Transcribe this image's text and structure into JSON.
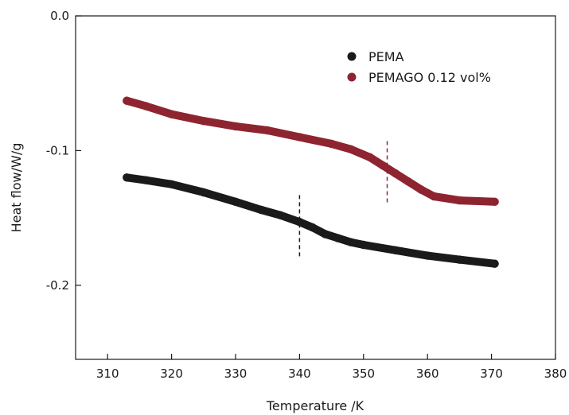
{
  "chart_data": {
    "type": "scatter",
    "title": "",
    "xlabel": "Temperature /K",
    "ylabel": "Heat flow/W/g",
    "xlim": [
      305,
      380
    ],
    "ylim": [
      -0.255,
      0
    ],
    "x_ticks": [
      310,
      320,
      330,
      340,
      350,
      360,
      370,
      380
    ],
    "x_tick_labels": [
      "310",
      "320",
      "330",
      "340",
      "350",
      "360",
      "370",
      "380"
    ],
    "y_ticks": [
      0.0,
      -0.1,
      -0.2
    ],
    "y_tick_labels": [
      "0.0",
      "-0.1",
      "-0.2"
    ],
    "grid": false,
    "legend_position": "top-right",
    "series": [
      {
        "name": "PEMA",
        "color": "#1a1a1a",
        "x": [
          313,
          316,
          320,
          325,
          330,
          334,
          337,
          340,
          342,
          344,
          346,
          348,
          350,
          355,
          360,
          365,
          370.5
        ],
        "y": [
          -0.12,
          -0.122,
          -0.125,
          -0.131,
          -0.138,
          -0.144,
          -0.148,
          -0.153,
          -0.157,
          -0.162,
          -0.165,
          -0.168,
          -0.17,
          -0.174,
          -0.178,
          -0.181,
          -0.184
        ]
      },
      {
        "name": "PEMAGO 0.12 vol%",
        "color": "#8f2431",
        "x": [
          313,
          316,
          320,
          325,
          330,
          335,
          340,
          345,
          348,
          351,
          353,
          355,
          357,
          359,
          361,
          365,
          370.5
        ],
        "y": [
          -0.063,
          -0.067,
          -0.073,
          -0.078,
          -0.082,
          -0.085,
          -0.09,
          -0.095,
          -0.099,
          -0.105,
          -0.111,
          -0.117,
          -0.123,
          -0.129,
          -0.134,
          -0.137,
          -0.138
        ]
      }
    ],
    "annotations": [
      {
        "type": "vertical-dashed-line",
        "x": 340.0,
        "y_top": -0.133,
        "y_bottom": -0.18,
        "color": "#1a1a1a"
      },
      {
        "type": "vertical-dashed-line",
        "x": 353.7,
        "y_top": -0.093,
        "y_bottom": -0.14,
        "color": "#8f2431"
      }
    ]
  }
}
